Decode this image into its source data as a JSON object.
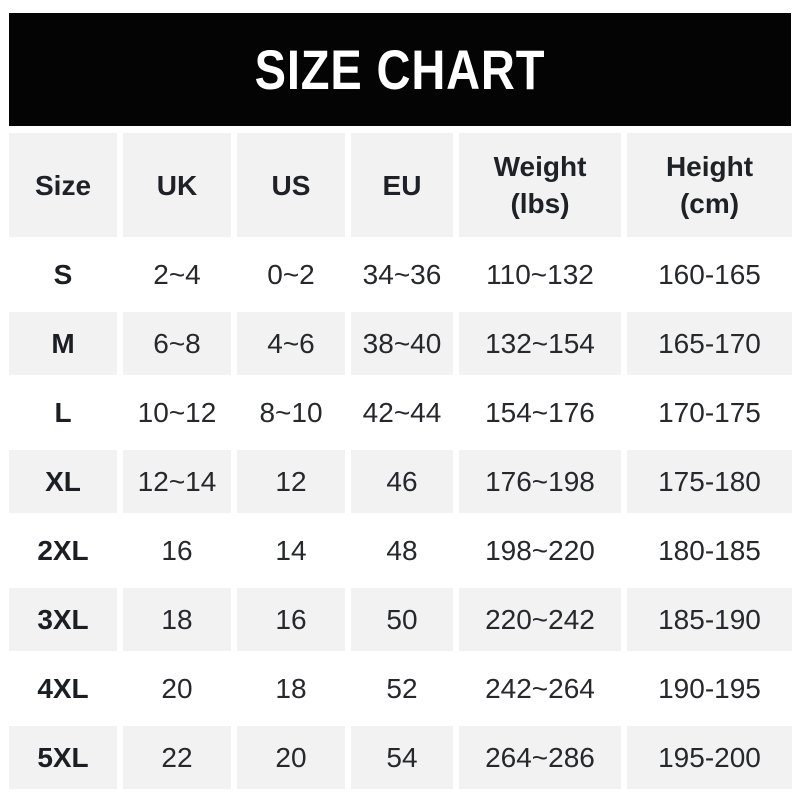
{
  "chart_data": {
    "type": "table",
    "title": "SIZE CHART",
    "columns": [
      {
        "label": "Size",
        "sub": ""
      },
      {
        "label": "UK",
        "sub": ""
      },
      {
        "label": "US",
        "sub": ""
      },
      {
        "label": "EU",
        "sub": ""
      },
      {
        "label": "Weight",
        "sub": "(lbs)"
      },
      {
        "label": "Height",
        "sub": "(cm)"
      }
    ],
    "rows": [
      [
        "S",
        "2~4",
        "0~2",
        "34~36",
        "110~132",
        "160-165"
      ],
      [
        "M",
        "6~8",
        "4~6",
        "38~40",
        "132~154",
        "165-170"
      ],
      [
        "L",
        "10~12",
        "8~10",
        "42~44",
        "154~176",
        "170-175"
      ],
      [
        "XL",
        "12~14",
        "12",
        "46",
        "176~198",
        "175-180"
      ],
      [
        "2XL",
        "16",
        "14",
        "48",
        "198~220",
        "180-185"
      ],
      [
        "3XL",
        "18",
        "16",
        "50",
        "220~242",
        "185-190"
      ],
      [
        "4XL",
        "20",
        "18",
        "52",
        "242~264",
        "190-195"
      ],
      [
        "5XL",
        "22",
        "20",
        "54",
        "264~286",
        "195-200"
      ]
    ]
  },
  "colors": {
    "banner_bg": "#040404",
    "banner_text": "#ffffff",
    "cell_bg": "#f2f2f3",
    "row_alt_bg": "#ffffff",
    "text": "#26282c",
    "page_bg": "#ffffff"
  }
}
